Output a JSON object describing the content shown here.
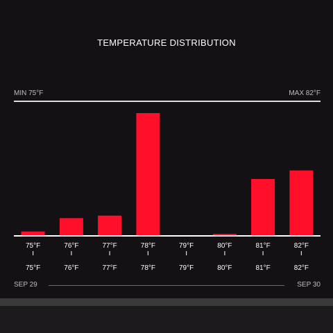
{
  "title": "TEMPERATURE DISTRIBUTION",
  "range": {
    "min_label": "MIN 75°F",
    "max_label": "MAX 82°F"
  },
  "dates": {
    "start": "SEP 29",
    "end": "SEP 30"
  },
  "colors": {
    "bar": "#ff0f2a",
    "background": "#141114",
    "axis": "#ffffff",
    "text": "#ffffff"
  },
  "chart_data": {
    "type": "bar",
    "categories": [
      "75°F",
      "76°F",
      "77°F",
      "78°F",
      "79°F",
      "80°F",
      "81°F",
      "82°F"
    ],
    "second_row_labels": [
      "75°F",
      "76°F",
      "77°F",
      "78°F",
      "79°F",
      "80°F",
      "81°F",
      "82°F"
    ],
    "values": [
      3,
      14,
      16,
      100,
      0,
      1,
      46,
      53
    ],
    "ylim": [
      0,
      100
    ],
    "title": "TEMPERATURE DISTRIBUTION",
    "xlabel": "",
    "ylabel": "",
    "grid": false,
    "legend": "none"
  }
}
